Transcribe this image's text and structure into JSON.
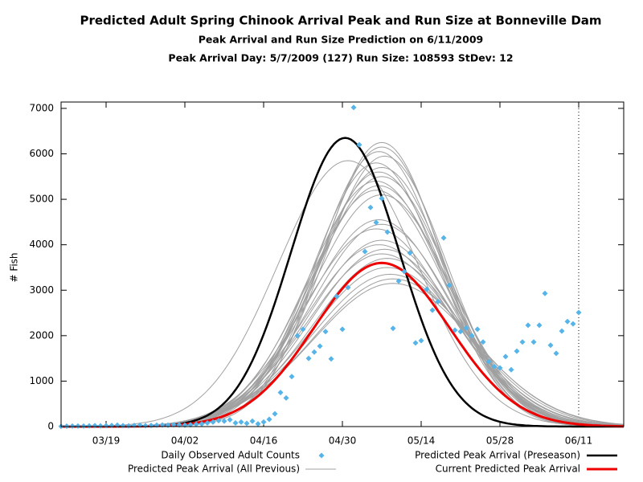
{
  "chart_data": {
    "type": "line",
    "title": "Predicted Adult Spring Chinook Arrival Peak and Run Size at Bonneville Dam",
    "subtitle": "Peak Arrival and Run Size Prediction on 6/11/2009",
    "subtitle2": "Peak Arrival Day: 5/7/2009 (127) Run Size: 108593 StDev: 12",
    "ylabel": "# Fish",
    "xlim": [
      70,
      170
    ],
    "ylim": [
      0,
      7140
    ],
    "xticks": [
      {
        "value": 78,
        "label": "03/19"
      },
      {
        "value": 92,
        "label": "04/02"
      },
      {
        "value": 106,
        "label": "04/16"
      },
      {
        "value": 120,
        "label": "04/30"
      },
      {
        "value": 134,
        "label": "05/14"
      },
      {
        "value": 148,
        "label": "05/28"
      },
      {
        "value": 162,
        "label": "06/11"
      }
    ],
    "yticks": [
      0,
      1000,
      2000,
      3000,
      4000,
      5000,
      6000,
      7000
    ],
    "marker_x": 162,
    "observed": {
      "name": "Daily Observed Adult Counts",
      "color": "#56b4e9",
      "x": [
        70,
        71,
        72,
        73,
        74,
        75,
        76,
        77,
        78,
        79,
        80,
        81,
        82,
        83,
        84,
        85,
        86,
        87,
        88,
        89,
        90,
        91,
        92,
        93,
        94,
        95,
        96,
        97,
        98,
        99,
        100,
        101,
        102,
        103,
        104,
        105,
        106,
        107,
        108,
        109,
        110,
        111,
        112,
        113,
        114,
        115,
        116,
        117,
        118,
        119,
        120,
        121,
        122,
        123,
        124,
        125,
        126,
        127,
        128,
        129,
        130,
        131,
        132,
        133,
        134,
        135,
        136,
        137,
        138,
        139,
        140,
        141,
        142,
        143,
        144,
        145,
        146,
        147,
        148,
        149,
        150,
        151,
        152,
        153,
        154,
        155,
        156,
        157,
        158,
        159,
        160,
        161,
        162
      ],
      "values": [
        5,
        8,
        10,
        12,
        10,
        15,
        20,
        15,
        20,
        25,
        30,
        20,
        15,
        25,
        30,
        20,
        25,
        30,
        35,
        30,
        40,
        35,
        30,
        40,
        50,
        60,
        80,
        100,
        130,
        120,
        150,
        80,
        100,
        70,
        120,
        60,
        100,
        160,
        280,
        750,
        630,
        1100,
        2000,
        2140,
        1500,
        1640,
        1770,
        2090,
        1490,
        2860,
        2140,
        3060,
        7020,
        6200,
        3850,
        4820,
        4490,
        5020,
        4280,
        2160,
        3200,
        3410,
        3820,
        1840,
        1890,
        3020,
        2560,
        2750,
        4150,
        3110,
        2120,
        2090,
        2170,
        2000,
        2140,
        1860,
        1430,
        1320,
        1290,
        1540,
        1250,
        1660,
        1860,
        2230,
        1860,
        2230,
        2930,
        1790,
        1610,
        2100,
        2310,
        2260,
        2510
      ]
    },
    "series": [
      {
        "name": "Predicted Peak Arrival (All Previous)",
        "color": "#a0a0a0",
        "width": 1,
        "curves": [
          {
            "peak": 6250,
            "peak_day": 127,
            "stdev": 10.5
          },
          {
            "peak": 6150,
            "peak_day": 127,
            "stdev": 10.8
          },
          {
            "peak": 6050,
            "peak_day": 126.5,
            "stdev": 11
          },
          {
            "peak": 5950,
            "peak_day": 127.5,
            "stdev": 11
          },
          {
            "peak": 5850,
            "peak_day": 121,
            "stdev": 12.5
          },
          {
            "peak": 5800,
            "peak_day": 126,
            "stdev": 11.2
          },
          {
            "peak": 5700,
            "peak_day": 127,
            "stdev": 11.5
          },
          {
            "peak": 5600,
            "peak_day": 126.5,
            "stdev": 11.5
          },
          {
            "peak": 5500,
            "peak_day": 127,
            "stdev": 11.8
          },
          {
            "peak": 5400,
            "peak_day": 126,
            "stdev": 12
          },
          {
            "peak": 5300,
            "peak_day": 126.5,
            "stdev": 12
          },
          {
            "peak": 5200,
            "peak_day": 126,
            "stdev": 12.2
          },
          {
            "peak": 5100,
            "peak_day": 127,
            "stdev": 12.3
          },
          {
            "peak": 4550,
            "peak_day": 126.5,
            "stdev": 12.5
          },
          {
            "peak": 4450,
            "peak_day": 127,
            "stdev": 12.5
          },
          {
            "peak": 4350,
            "peak_day": 126,
            "stdev": 12.8
          },
          {
            "peak": 4100,
            "peak_day": 127,
            "stdev": 12.8
          },
          {
            "peak": 4000,
            "peak_day": 126.5,
            "stdev": 13
          },
          {
            "peak": 3900,
            "peak_day": 127.5,
            "stdev": 13
          },
          {
            "peak": 3800,
            "peak_day": 127,
            "stdev": 13.2
          },
          {
            "peak": 3700,
            "peak_day": 128,
            "stdev": 13.2
          },
          {
            "peak": 3500,
            "peak_day": 128,
            "stdev": 13.5
          },
          {
            "peak": 3350,
            "peak_day": 128.5,
            "stdev": 13.8
          },
          {
            "peak": 3250,
            "peak_day": 129,
            "stdev": 14
          },
          {
            "peak": 3150,
            "peak_day": 129,
            "stdev": 14.2
          }
        ]
      },
      {
        "name": "Predicted Peak Arrival (Preseason)",
        "color": "#000000",
        "width": 2.5,
        "curves": [
          {
            "peak": 6350,
            "peak_day": 120.5,
            "stdev": 9.6
          }
        ]
      },
      {
        "name": "Current Predicted Peak Arrival",
        "color": "#ee0000",
        "width": 3,
        "curves": [
          {
            "peak": 3600,
            "peak_day": 127,
            "stdev": 12
          }
        ]
      }
    ]
  }
}
